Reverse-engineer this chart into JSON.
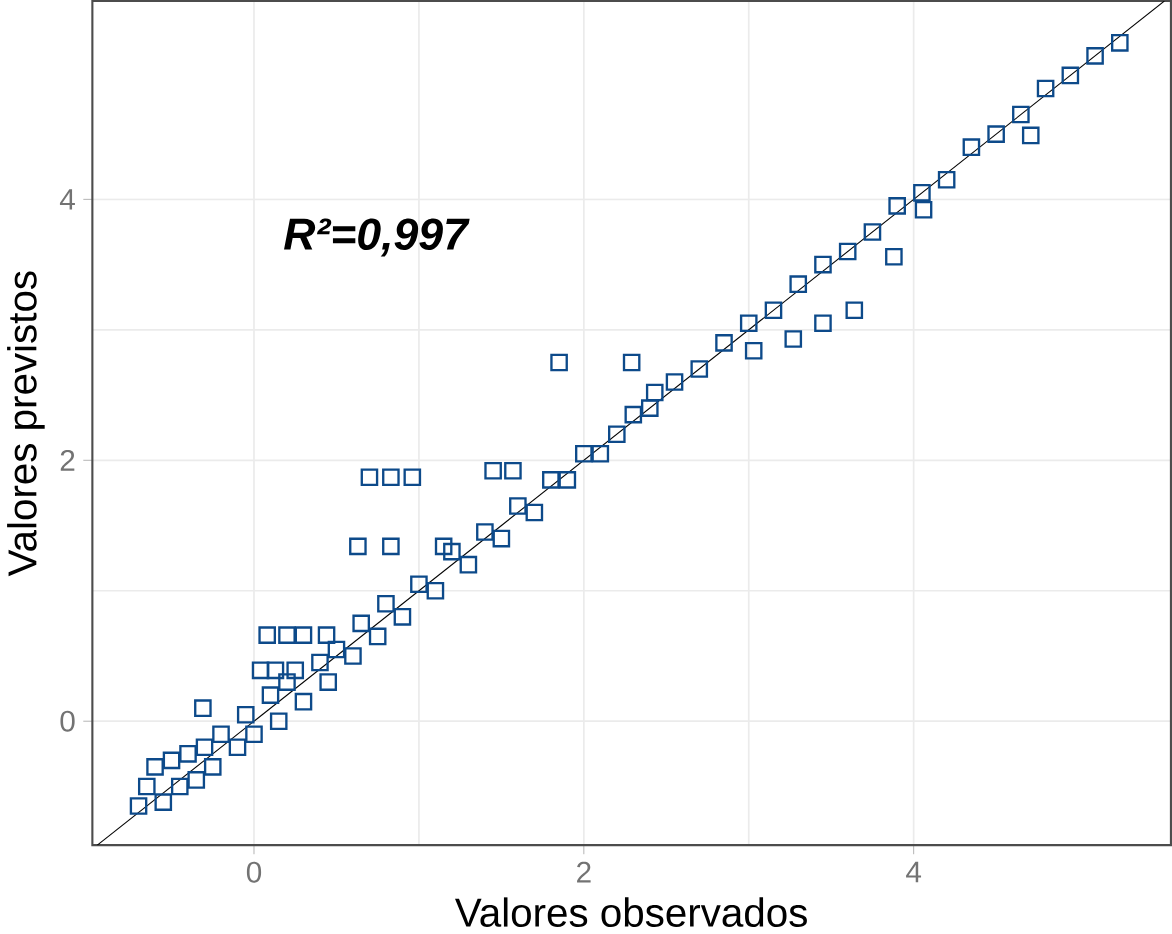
{
  "chart_data": {
    "type": "scatter",
    "xlabel": "Valores observados",
    "ylabel": "Valores previstos",
    "xlim": [
      -0.98,
      5.56
    ],
    "ylim": [
      -0.95,
      5.52
    ],
    "xticks": [
      0,
      2,
      4
    ],
    "yticks": [
      0,
      2,
      4
    ],
    "grid": true,
    "annotations": [
      "R²=0,997"
    ],
    "series": [
      {
        "marker": "square",
        "color": "#0d4a8a",
        "x": [
          -0.7,
          -0.65,
          -0.6,
          -0.55,
          -0.5,
          -0.45,
          -0.4,
          -0.35,
          -0.3,
          -0.25,
          -0.2,
          -0.1,
          -0.05,
          0,
          0.1,
          0.15,
          0.2,
          0.3,
          0.4,
          0.45,
          0.5,
          0.6,
          0.65,
          0.75,
          0.8,
          0.9,
          1.0,
          1.1,
          1.2,
          1.3,
          1.4,
          1.5,
          1.6,
          1.7,
          1.8,
          1.9,
          2.0,
          2.1,
          2.2,
          2.3,
          2.4,
          2.55,
          2.7,
          2.85,
          3.0,
          3.15,
          3.3,
          3.45,
          3.6,
          3.75,
          3.9,
          4.05,
          4.2,
          4.35,
          4.5,
          4.65,
          4.8,
          4.95,
          5.1,
          5.25,
          0.7,
          0.83,
          0.96,
          1.45,
          1.57,
          0.63,
          0.83,
          1.15,
          0.08,
          0.2,
          0.3,
          0.44,
          0.04,
          0.13,
          0.25,
          -0.31,
          1.85,
          2.29,
          3.88,
          3.27,
          3.45,
          3.64,
          4.71,
          4.06,
          2.43,
          3.03
        ],
        "values": [
          -0.65,
          -0.5,
          -0.35,
          -0.62,
          -0.3,
          -0.5,
          -0.25,
          -0.45,
          -0.2,
          -0.35,
          -0.1,
          -0.2,
          0.05,
          -0.1,
          0.2,
          0,
          0.3,
          0.15,
          0.45,
          0.3,
          0.55,
          0.5,
          0.75,
          0.65,
          0.9,
          0.8,
          1.05,
          1.0,
          1.3,
          1.2,
          1.45,
          1.4,
          1.65,
          1.6,
          1.85,
          1.85,
          2.05,
          2.05,
          2.2,
          2.35,
          2.4,
          2.6,
          2.7,
          2.9,
          3.05,
          3.15,
          3.35,
          3.5,
          3.6,
          3.75,
          3.95,
          4.05,
          4.15,
          4.4,
          4.5,
          4.65,
          4.85,
          4.95,
          5.1,
          5.2,
          1.87,
          1.87,
          1.87,
          1.92,
          1.92,
          1.34,
          1.34,
          1.34,
          0.66,
          0.66,
          0.66,
          0.66,
          0.39,
          0.39,
          0.39,
          0.1,
          2.75,
          2.75,
          3.56,
          2.93,
          3.05,
          3.15,
          4.49,
          3.92,
          2.52,
          2.84
        ]
      },
      {
        "type": "line",
        "color": "#000000",
        "x": [
          -0.95,
          5.52
        ],
        "values": [
          -0.95,
          5.52
        ]
      }
    ]
  }
}
